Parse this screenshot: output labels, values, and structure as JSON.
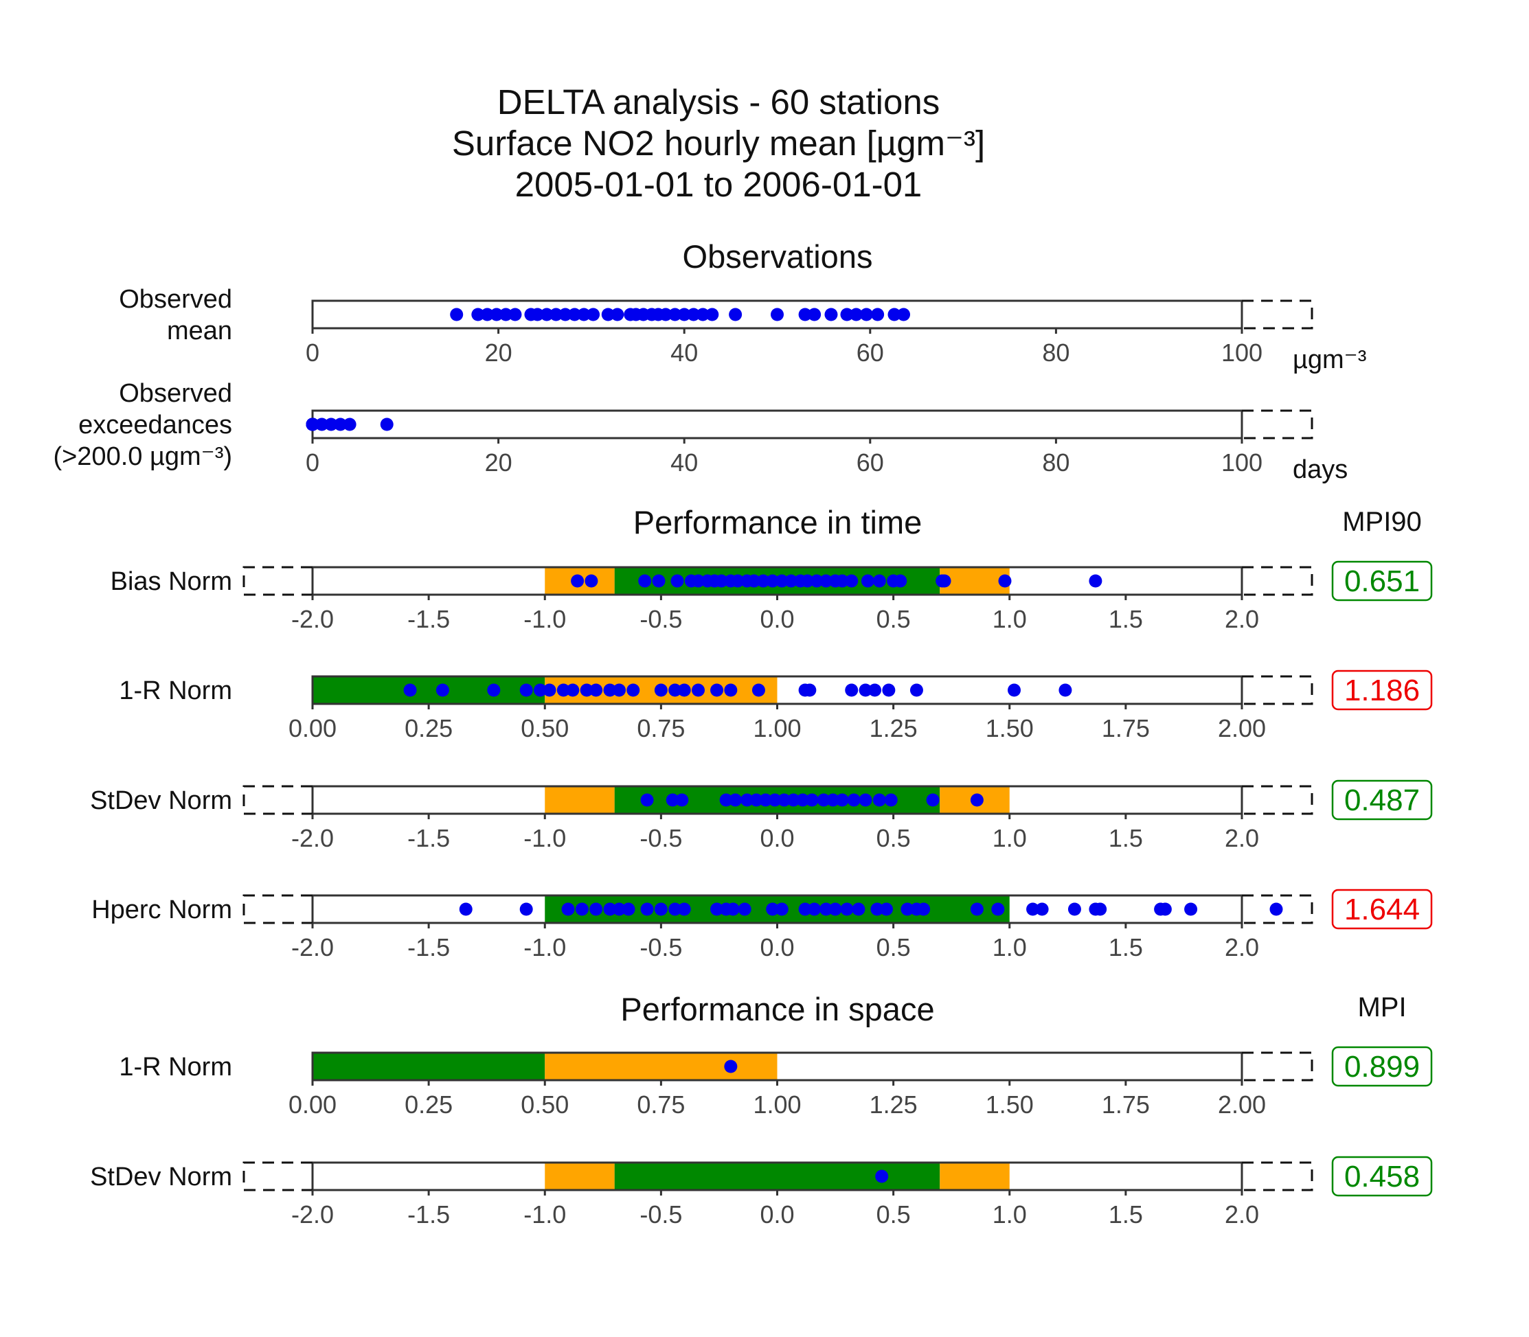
{
  "chart_data": {
    "type": "scatter",
    "title": [
      "DELTA analysis - 60 stations",
      "Surface NO2 hourly mean [µgm⁻³]",
      "2005-01-01 to 2006-01-01"
    ],
    "colors": {
      "green": "#008800",
      "orange": "#ffa500",
      "dot": "#0000ee",
      "good": "#008800",
      "bad": "#ee0000"
    },
    "sections": [
      {
        "id": "observations",
        "title": "Observations",
        "mpi_header": "",
        "rows": [
          {
            "id": "observed-mean",
            "label": [
              "Observed",
              "mean"
            ],
            "xlim": [
              0,
              100
            ],
            "ticks": [
              0,
              20,
              40,
              60,
              80,
              100
            ],
            "tick_labels": [
              "0",
              "20",
              "40",
              "60",
              "80",
              "100"
            ],
            "unit": "µgm⁻³",
            "left_overflow": false,
            "zones": [],
            "points": [
              15.5,
              17.8,
              18.8,
              19.8,
              20.8,
              21.8,
              23.5,
              24.2,
              25.2,
              26.2,
              27.2,
              28.2,
              29.2,
              30.2,
              31.8,
              32.8,
              34.2,
              34.8,
              35.6,
              36.5,
              37.2,
              38.0,
              39.0,
              40.0,
              41.0,
              42.0,
              43.0,
              45.5,
              50.0,
              53.0,
              54.0,
              55.8,
              57.5,
              58.5,
              59.6,
              60.8,
              62.6,
              63.6
            ]
          },
          {
            "id": "observed-exceedances",
            "label": [
              "Observed",
              "exceedances",
              "(>200.0 µgm⁻³)"
            ],
            "xlim": [
              0,
              100
            ],
            "ticks": [
              0,
              20,
              40,
              60,
              80,
              100
            ],
            "tick_labels": [
              "0",
              "20",
              "40",
              "60",
              "80",
              "100"
            ],
            "unit": "days",
            "left_overflow": false,
            "zones": [],
            "points": [
              0,
              0,
              0,
              0,
              0,
              0,
              0,
              0,
              0,
              0,
              1,
              2,
              3,
              4,
              8
            ]
          }
        ]
      },
      {
        "id": "performance-in-time",
        "title": "Performance in time",
        "mpi_header": "MPI90",
        "rows": [
          {
            "id": "bias-norm",
            "label": [
              "Bias Norm"
            ],
            "xlim": [
              -2,
              2
            ],
            "ticks": [
              -2,
              -1.5,
              -1,
              -0.5,
              0,
              0.5,
              1,
              1.5,
              2
            ],
            "tick_labels": [
              "-2.0",
              "-1.5",
              "-1.0",
              "-0.5",
              "0.0",
              "0.5",
              "1.0",
              "1.5",
              "2.0"
            ],
            "left_overflow": true,
            "zones": [
              {
                "from": -1,
                "to": -0.7,
                "color": "orange"
              },
              {
                "from": -0.7,
                "to": 0.7,
                "color": "green"
              },
              {
                "from": 0.7,
                "to": 1,
                "color": "orange"
              }
            ],
            "points": [
              -0.86,
              -0.8,
              -0.57,
              -0.51,
              -0.43,
              -0.37,
              -0.34,
              -0.3,
              -0.27,
              -0.24,
              -0.2,
              -0.17,
              -0.13,
              -0.1,
              -0.06,
              -0.02,
              0.02,
              0.06,
              0.1,
              0.13,
              0.17,
              0.21,
              0.25,
              0.28,
              0.32,
              0.39,
              0.44,
              0.5,
              0.53,
              0.71,
              0.72,
              0.98,
              1.37
            ],
            "mpi": "0.651",
            "mpi_status": "good"
          },
          {
            "id": "one-minus-r-norm-time",
            "label": [
              "1-R Norm"
            ],
            "xlim": [
              0,
              2
            ],
            "ticks": [
              0,
              0.25,
              0.5,
              0.75,
              1,
              1.25,
              1.5,
              1.75,
              2
            ],
            "tick_labels": [
              "0.00",
              "0.25",
              "0.50",
              "0.75",
              "1.00",
              "1.25",
              "1.50",
              "1.75",
              "2.00"
            ],
            "left_overflow": false,
            "zones": [
              {
                "from": 0,
                "to": 0.5,
                "color": "green"
              },
              {
                "from": 0.5,
                "to": 1,
                "color": "orange"
              }
            ],
            "points": [
              0.21,
              0.28,
              0.39,
              0.46,
              0.49,
              0.51,
              0.54,
              0.56,
              0.59,
              0.61,
              0.64,
              0.66,
              0.69,
              0.75,
              0.78,
              0.8,
              0.83,
              0.87,
              0.9,
              0.96,
              1.06,
              1.07,
              1.16,
              1.19,
              1.21,
              1.24,
              1.3,
              1.51,
              1.62
            ],
            "mpi": "1.186",
            "mpi_status": "bad"
          },
          {
            "id": "stdev-norm-time",
            "label": [
              "StDev Norm"
            ],
            "xlim": [
              -2,
              2
            ],
            "ticks": [
              -2,
              -1.5,
              -1,
              -0.5,
              0,
              0.5,
              1,
              1.5,
              2
            ],
            "tick_labels": [
              "-2.0",
              "-1.5",
              "-1.0",
              "-0.5",
              "0.0",
              "0.5",
              "1.0",
              "1.5",
              "2.0"
            ],
            "left_overflow": true,
            "zones": [
              {
                "from": -1,
                "to": -0.7,
                "color": "orange"
              },
              {
                "from": -0.7,
                "to": 0.7,
                "color": "green"
              },
              {
                "from": 0.7,
                "to": 1,
                "color": "orange"
              }
            ],
            "points": [
              -0.56,
              -0.45,
              -0.41,
              -0.22,
              -0.18,
              -0.13,
              -0.09,
              -0.05,
              -0.01,
              0.03,
              0.07,
              0.11,
              0.15,
              0.2,
              0.24,
              0.28,
              0.33,
              0.38,
              0.44,
              0.49,
              0.67,
              0.86
            ],
            "mpi": "0.487",
            "mpi_status": "good"
          },
          {
            "id": "hperc-norm",
            "label": [
              "Hperc Norm"
            ],
            "xlim": [
              -2,
              2
            ],
            "ticks": [
              -2,
              -1.5,
              -1,
              -0.5,
              0,
              0.5,
              1,
              1.5,
              2
            ],
            "tick_labels": [
              "-2.0",
              "-1.5",
              "-1.0",
              "-0.5",
              "0.0",
              "0.5",
              "1.0",
              "1.5",
              "2.0"
            ],
            "left_overflow": true,
            "zones": [
              {
                "from": -1,
                "to": 1,
                "color": "green"
              }
            ],
            "points": [
              -1.34,
              -1.08,
              -0.9,
              -0.84,
              -0.78,
              -0.72,
              -0.68,
              -0.64,
              -0.56,
              -0.5,
              -0.44,
              -0.4,
              -0.26,
              -0.22,
              -0.19,
              -0.14,
              -0.02,
              0.02,
              0.12,
              0.16,
              0.21,
              0.25,
              0.3,
              0.35,
              0.43,
              0.47,
              0.56,
              0.6,
              0.63,
              0.86,
              0.95,
              1.1,
              1.14,
              1.28,
              1.37,
              1.39,
              1.65,
              1.67,
              1.78,
              2.15
            ],
            "mpi": "1.644",
            "mpi_status": "bad"
          }
        ]
      },
      {
        "id": "performance-in-space",
        "title": "Performance in space",
        "mpi_header": "MPI",
        "rows": [
          {
            "id": "one-minus-r-norm-space",
            "label": [
              "1-R Norm"
            ],
            "xlim": [
              0,
              2
            ],
            "ticks": [
              0,
              0.25,
              0.5,
              0.75,
              1,
              1.25,
              1.5,
              1.75,
              2
            ],
            "tick_labels": [
              "0.00",
              "0.25",
              "0.50",
              "0.75",
              "1.00",
              "1.25",
              "1.50",
              "1.75",
              "2.00"
            ],
            "left_overflow": false,
            "zones": [
              {
                "from": 0,
                "to": 0.5,
                "color": "green"
              },
              {
                "from": 0.5,
                "to": 1,
                "color": "orange"
              }
            ],
            "points": [
              0.9
            ],
            "mpi": "0.899",
            "mpi_status": "good"
          },
          {
            "id": "stdev-norm-space",
            "label": [
              "StDev Norm"
            ],
            "xlim": [
              -2,
              2
            ],
            "ticks": [
              -2,
              -1.5,
              -1,
              -0.5,
              0,
              0.5,
              1,
              1.5,
              2
            ],
            "tick_labels": [
              "-2.0",
              "-1.5",
              "-1.0",
              "-0.5",
              "0.0",
              "0.5",
              "1.0",
              "1.5",
              "2.0"
            ],
            "left_overflow": true,
            "zones": [
              {
                "from": -1,
                "to": -0.7,
                "color": "orange"
              },
              {
                "from": -0.7,
                "to": 0.7,
                "color": "green"
              },
              {
                "from": 0.7,
                "to": 1,
                "color": "orange"
              }
            ],
            "points": [
              0.45
            ],
            "mpi": "0.458",
            "mpi_status": "good"
          }
        ]
      }
    ]
  }
}
